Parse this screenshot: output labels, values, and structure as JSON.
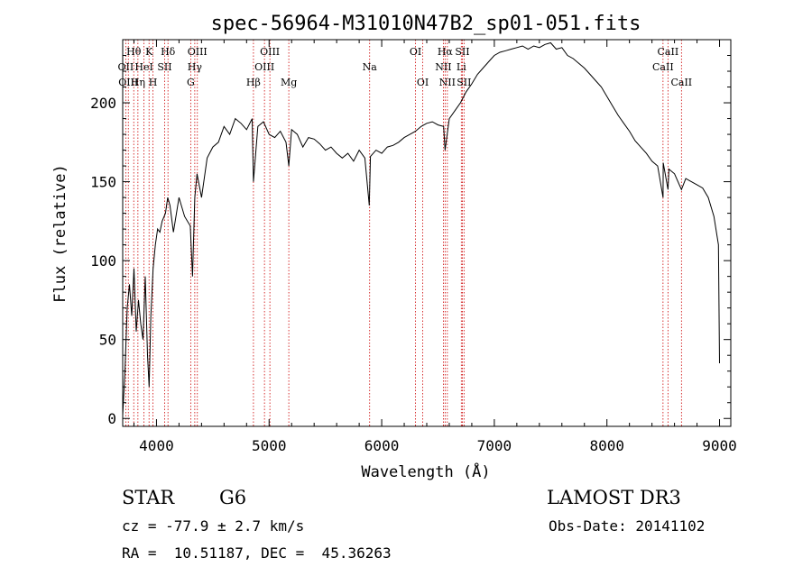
{
  "chart_data": {
    "type": "line",
    "title": "spec-56964-M31010N47B2_sp01-051.fits",
    "xlabel": "Wavelength (Å)",
    "ylabel": "Flux (relative)",
    "xlim": [
      3700,
      9100
    ],
    "ylim": [
      -5,
      240
    ],
    "x_ticks": [
      4000,
      5000,
      6000,
      7000,
      8000,
      9000
    ],
    "y_ticks": [
      0,
      50,
      100,
      150,
      200
    ],
    "series": [
      {
        "name": "flux",
        "x": [
          3700,
          3720,
          3740,
          3760,
          3780,
          3800,
          3820,
          3840,
          3860,
          3880,
          3900,
          3920,
          3935,
          3950,
          3970,
          3990,
          4010,
          4030,
          4050,
          4080,
          4100,
          4120,
          4150,
          4200,
          4250,
          4300,
          4320,
          4340,
          4360,
          4400,
          4450,
          4500,
          4550,
          4600,
          4650,
          4700,
          4750,
          4800,
          4850,
          4861,
          4900,
          4950,
          5000,
          5050,
          5100,
          5150,
          5175,
          5200,
          5250,
          5300,
          5350,
          5400,
          5450,
          5500,
          5550,
          5600,
          5650,
          5700,
          5750,
          5800,
          5850,
          5890,
          5900,
          5950,
          6000,
          6050,
          6100,
          6150,
          6200,
          6250,
          6300,
          6350,
          6400,
          6450,
          6500,
          6550,
          6563,
          6600,
          6650,
          6700,
          6750,
          6800,
          6850,
          6900,
          6950,
          7000,
          7050,
          7100,
          7150,
          7200,
          7250,
          7300,
          7350,
          7400,
          7450,
          7500,
          7550,
          7600,
          7650,
          7700,
          7750,
          7800,
          7850,
          7900,
          7950,
          8000,
          8050,
          8100,
          8150,
          8200,
          8250,
          8300,
          8350,
          8400,
          8450,
          8498,
          8500,
          8542,
          8550,
          8600,
          8662,
          8700,
          8750,
          8800,
          8850,
          8900,
          8950,
          8990,
          9000
        ],
        "y": [
          2,
          30,
          70,
          85,
          65,
          95,
          55,
          75,
          60,
          50,
          90,
          40,
          20,
          65,
          95,
          110,
          120,
          118,
          125,
          130,
          140,
          135,
          118,
          140,
          128,
          122,
          90,
          140,
          155,
          140,
          165,
          172,
          175,
          185,
          180,
          190,
          187,
          183,
          190,
          150,
          185,
          188,
          180,
          178,
          182,
          175,
          160,
          183,
          180,
          172,
          178,
          177,
          174,
          170,
          172,
          168,
          165,
          168,
          163,
          170,
          165,
          135,
          166,
          170,
          168,
          172,
          173,
          175,
          178,
          180,
          182,
          185,
          187,
          188,
          186,
          185,
          170,
          190,
          195,
          200,
          207,
          212,
          218,
          222,
          226,
          230,
          232,
          233,
          234,
          235,
          236,
          234,
          236,
          235,
          237,
          238,
          234,
          235,
          230,
          228,
          225,
          222,
          218,
          214,
          210,
          204,
          198,
          192,
          187,
          182,
          176,
          172,
          168,
          163,
          160,
          140,
          162,
          145,
          158,
          155,
          145,
          152,
          150,
          148,
          146,
          140,
          128,
          110,
          35
        ]
      }
    ],
    "spectral_lines": [
      {
        "wavelength": 3727,
        "label": "OII",
        "level": 1
      },
      {
        "wavelength": 3750,
        "label": "OIII",
        "level": 2
      },
      {
        "wavelength": 3798,
        "label": "Hθ",
        "level": 0
      },
      {
        "wavelength": 3835,
        "label": "Hη",
        "level": 2
      },
      {
        "wavelength": 3889,
        "label": "HeI",
        "level": 1
      },
      {
        "wavelength": 3934,
        "label": "K",
        "level": 0
      },
      {
        "wavelength": 3969,
        "label": "H",
        "level": 2
      },
      {
        "wavelength": 4072,
        "label": "SII",
        "level": 1
      },
      {
        "wavelength": 4102,
        "label": "Hδ",
        "level": 0
      },
      {
        "wavelength": 4304,
        "label": "G",
        "level": 2
      },
      {
        "wavelength": 4340,
        "label": "Hγ",
        "level": 1
      },
      {
        "wavelength": 4363,
        "label": "OIII",
        "level": 0
      },
      {
        "wavelength": 4861,
        "label": "Hβ",
        "level": 2
      },
      {
        "wavelength": 4959,
        "label": "OIII",
        "level": 1
      },
      {
        "wavelength": 5007,
        "label": "OIII",
        "level": 0
      },
      {
        "wavelength": 5175,
        "label": "Mg",
        "level": 2
      },
      {
        "wavelength": 5893,
        "label": "Na",
        "level": 1
      },
      {
        "wavelength": 6300,
        "label": "OI",
        "level": 0
      },
      {
        "wavelength": 6364,
        "label": "OI",
        "level": 2
      },
      {
        "wavelength": 6548,
        "label": "NII",
        "level": 1
      },
      {
        "wavelength": 6563,
        "label": "Hα",
        "level": 0
      },
      {
        "wavelength": 6583,
        "label": "NII",
        "level": 2
      },
      {
        "wavelength": 6707,
        "label": "Li",
        "level": 1
      },
      {
        "wavelength": 6716,
        "label": "SII",
        "level": 0
      },
      {
        "wavelength": 6731,
        "label": "SII",
        "level": 2
      },
      {
        "wavelength": 8498,
        "label": "CaII",
        "level": 1
      },
      {
        "wavelength": 8542,
        "label": "CaII",
        "level": 0
      },
      {
        "wavelength": 8662,
        "label": "CaII",
        "level": 2
      }
    ]
  },
  "info": {
    "object_class": "STAR",
    "subclass": "G6",
    "survey": "LAMOST DR3",
    "redshift_line": "cz = -77.9 ± 2.7 km/s",
    "obs_date": "Obs-Date: 20141102",
    "coords": "RA =  10.51187, DEC =  45.36263"
  },
  "colors": {
    "line": "#000000",
    "marker": "#cc0000",
    "background": "#ffffff"
  }
}
